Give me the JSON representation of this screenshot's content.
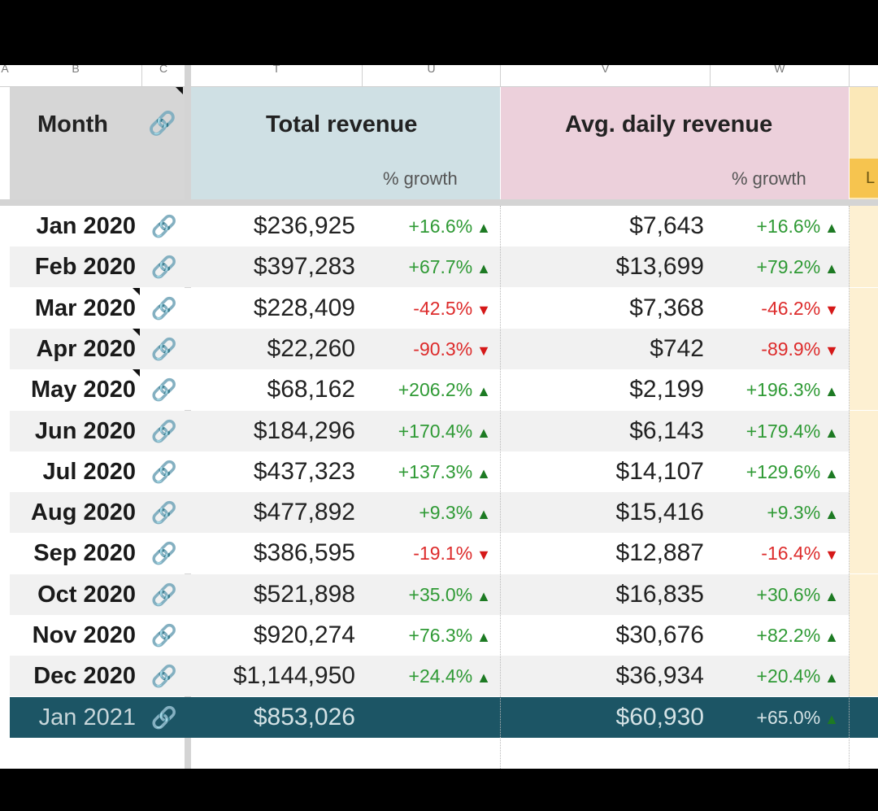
{
  "column_letters": [
    "A",
    "B",
    "C",
    "T",
    "U",
    "V",
    "W"
  ],
  "header": {
    "month": "Month",
    "total_revenue": "Total revenue",
    "avg_daily_revenue": "Avg. daily revenue",
    "total_growth": "% growth",
    "avg_growth": "% growth",
    "extra_tab": "L"
  },
  "rows": [
    {
      "month": "Jan 2020",
      "total": "$236,925",
      "total_growth": "+16.6%",
      "total_dir": "up",
      "avg": "$7,643",
      "avg_growth": "+16.6%",
      "avg_dir": "up"
    },
    {
      "month": "Feb 2020",
      "total": "$397,283",
      "total_growth": "+67.7%",
      "total_dir": "up",
      "avg": "$13,699",
      "avg_growth": "+79.2%",
      "avg_dir": "up"
    },
    {
      "month": "Mar 2020",
      "total": "$228,409",
      "total_growth": "-42.5%",
      "total_dir": "down",
      "avg": "$7,368",
      "avg_growth": "-46.2%",
      "avg_dir": "down"
    },
    {
      "month": "Apr 2020",
      "total": "$22,260",
      "total_growth": "-90.3%",
      "total_dir": "down",
      "avg": "$742",
      "avg_growth": "-89.9%",
      "avg_dir": "down"
    },
    {
      "month": "May 2020",
      "total": "$68,162",
      "total_growth": "+206.2%",
      "total_dir": "up",
      "avg": "$2,199",
      "avg_growth": "+196.3%",
      "avg_dir": "up"
    },
    {
      "month": "Jun 2020",
      "total": "$184,296",
      "total_growth": "+170.4%",
      "total_dir": "up",
      "avg": "$6,143",
      "avg_growth": "+179.4%",
      "avg_dir": "up"
    },
    {
      "month": "Jul 2020",
      "total": "$437,323",
      "total_growth": "+137.3%",
      "total_dir": "up",
      "avg": "$14,107",
      "avg_growth": "+129.6%",
      "avg_dir": "up"
    },
    {
      "month": "Aug 2020",
      "total": "$477,892",
      "total_growth": "+9.3%",
      "total_dir": "up",
      "avg": "$15,416",
      "avg_growth": "+9.3%",
      "avg_dir": "up"
    },
    {
      "month": "Sep 2020",
      "total": "$386,595",
      "total_growth": "-19.1%",
      "total_dir": "down",
      "avg": "$12,887",
      "avg_growth": "-16.4%",
      "avg_dir": "down"
    },
    {
      "month": "Oct 2020",
      "total": "$521,898",
      "total_growth": "+35.0%",
      "total_dir": "up",
      "avg": "$16,835",
      "avg_growth": "+30.6%",
      "avg_dir": "up"
    },
    {
      "month": "Nov 2020",
      "total": "$920,274",
      "total_growth": "+76.3%",
      "total_dir": "up",
      "avg": "$30,676",
      "avg_growth": "+82.2%",
      "avg_dir": "up"
    },
    {
      "month": "Dec 2020",
      "total": "$1,144,950",
      "total_growth": "+24.4%",
      "total_dir": "up",
      "avg": "$36,934",
      "avg_growth": "+20.4%",
      "avg_dir": "up"
    },
    {
      "month": "Jan 2021",
      "total": "$853,026",
      "total_growth": "",
      "total_dir": "",
      "avg": "$60,930",
      "avg_growth": "+65.0%",
      "avg_dir": "up",
      "highlighted": true
    }
  ],
  "colors": {
    "total_header_bg": "#cfe0e4",
    "avg_header_bg": "#ecd0db",
    "month_header_bg": "#d6d6d6",
    "highlight_row_bg": "#1c5565",
    "positive": "#2f9a35",
    "negative": "#dd2b2b"
  },
  "icons": {
    "link": "link-icon",
    "up": "triangle-up-icon",
    "down": "triangle-down-icon"
  }
}
